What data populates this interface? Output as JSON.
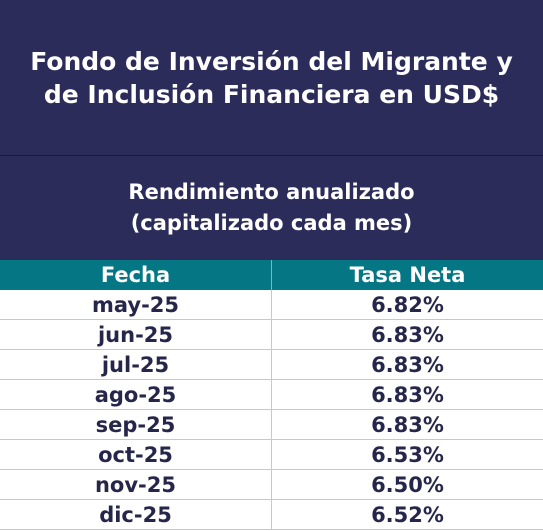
{
  "header": {
    "title": "Fondo de Inversión del Migrante y de Inclusión Financiera en USD$"
  },
  "subheader": {
    "line1": "Rendimiento anualizado",
    "line2": "(capitalizado cada mes)"
  },
  "table": {
    "columns": [
      "Fecha",
      "Tasa Neta"
    ],
    "rows": [
      {
        "fecha": "may-25",
        "tasa": "6.82%"
      },
      {
        "fecha": "jun-25",
        "tasa": "6.83%"
      },
      {
        "fecha": "jul-25",
        "tasa": "6.83%"
      },
      {
        "fecha": "ago-25",
        "tasa": "6.83%"
      },
      {
        "fecha": "sep-25",
        "tasa": "6.83%"
      },
      {
        "fecha": "oct-25",
        "tasa": "6.53%"
      },
      {
        "fecha": "nov-25",
        "tasa": "6.50%"
      },
      {
        "fecha": "dic-25",
        "tasa": "6.52%"
      }
    ]
  },
  "colors": {
    "header_bg": "#2c2c5a",
    "column_header_bg": "#057784",
    "text_dark": "#26264a"
  }
}
